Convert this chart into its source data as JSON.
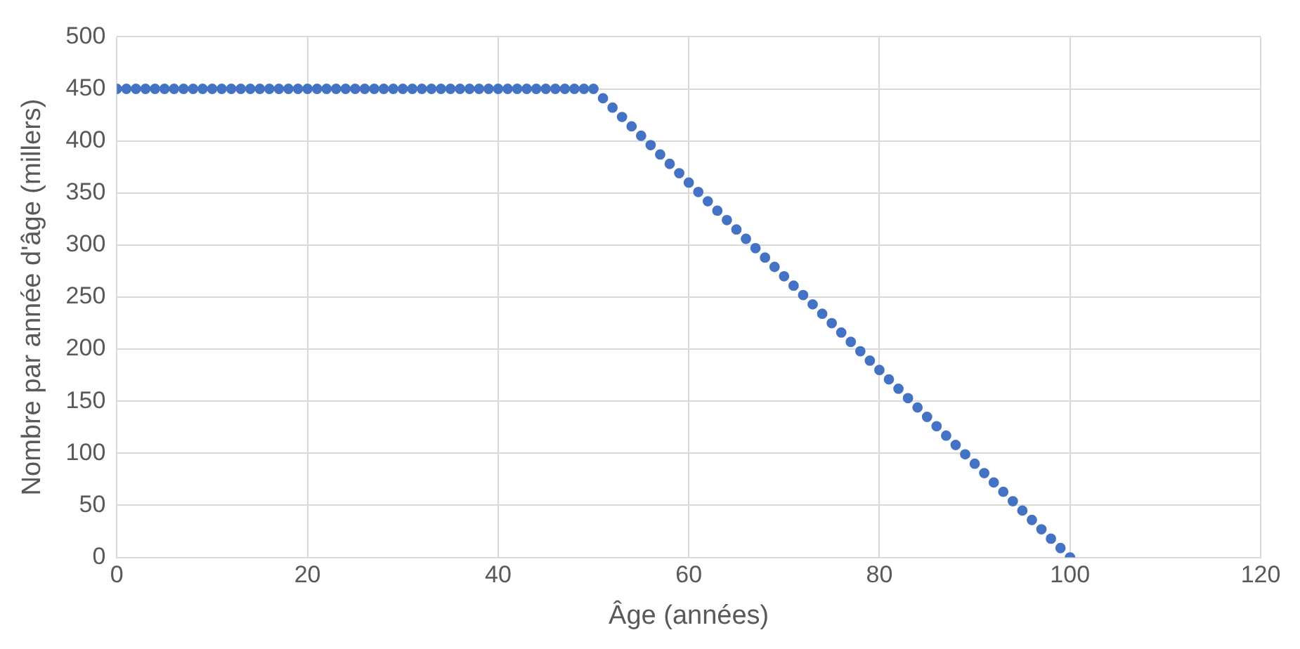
{
  "chart_data": {
    "type": "scatter",
    "xlabel": "Âge (années)",
    "ylabel": "Nombre par année d'âge (millers)",
    "x": [
      0,
      1,
      2,
      3,
      4,
      5,
      6,
      7,
      8,
      9,
      10,
      11,
      12,
      13,
      14,
      15,
      16,
      17,
      18,
      19,
      20,
      21,
      22,
      23,
      24,
      25,
      26,
      27,
      28,
      29,
      30,
      31,
      32,
      33,
      34,
      35,
      36,
      37,
      38,
      39,
      40,
      41,
      42,
      43,
      44,
      45,
      46,
      47,
      48,
      49,
      50,
      51,
      52,
      53,
      54,
      55,
      56,
      57,
      58,
      59,
      60,
      61,
      62,
      63,
      64,
      65,
      66,
      67,
      68,
      69,
      70,
      71,
      72,
      73,
      74,
      75,
      76,
      77,
      78,
      79,
      80,
      81,
      82,
      83,
      84,
      85,
      86,
      87,
      88,
      89,
      90,
      91,
      92,
      93,
      94,
      95,
      96,
      97,
      98,
      99,
      100
    ],
    "series": [
      {
        "color": "#4472c4",
        "values": [
          450,
          450,
          450,
          450,
          450,
          450,
          450,
          450,
          450,
          450,
          450,
          450,
          450,
          450,
          450,
          450,
          450,
          450,
          450,
          450,
          450,
          450,
          450,
          450,
          450,
          450,
          450,
          450,
          450,
          450,
          450,
          450,
          450,
          450,
          450,
          450,
          450,
          450,
          450,
          450,
          450,
          450,
          450,
          450,
          450,
          450,
          450,
          450,
          450,
          450,
          450,
          441,
          432,
          423,
          414,
          405,
          396,
          387,
          378,
          369,
          360,
          351,
          342,
          333,
          324,
          315,
          306,
          297,
          288,
          279,
          270,
          261,
          252,
          243,
          234,
          225,
          216,
          207,
          198,
          189,
          180,
          171,
          162,
          153,
          144,
          135,
          126,
          117,
          108,
          99,
          90,
          81,
          72,
          63,
          54,
          45,
          36,
          27,
          18,
          9,
          0
        ]
      }
    ],
    "xlim": [
      0,
      120
    ],
    "xticks": [
      0,
      20,
      40,
      60,
      80,
      100,
      120
    ],
    "ylim": [
      0,
      500
    ],
    "yticks": [
      0,
      50,
      100,
      150,
      200,
      250,
      300,
      350,
      400,
      450,
      500
    ],
    "grid": true,
    "marker": "circle"
  }
}
